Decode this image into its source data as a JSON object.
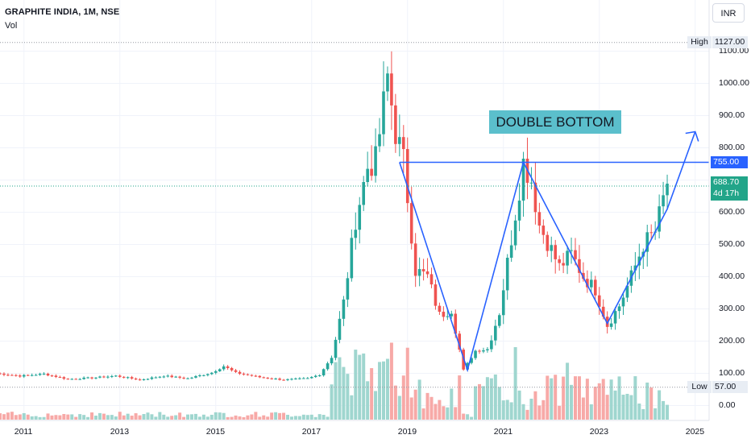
{
  "header": {
    "title": "GRAPHITE INDIA, 1M, NSE",
    "volume_label": "Vol",
    "currency": "INR"
  },
  "annotation": {
    "text": "DOUBLE BOTTOM"
  },
  "price_tags": {
    "high_label": "High",
    "high_value": "1127.00",
    "low_label": "Low",
    "low_value": "57.00",
    "resistance_value": "755.00",
    "last_value": "688.70",
    "countdown": "4d 17h"
  },
  "colors": {
    "up": "#26a69a",
    "down": "#ef5350",
    "vol_up": "#9fd6cf",
    "vol_down": "#f7a9a7",
    "pattern": "#2962ff",
    "annotation_bg": "#5bbfcc"
  },
  "chart_data": {
    "type": "candlestick",
    "title": "GRAPHITE INDIA, 1M, NSE",
    "interval": "1M",
    "y_ticks": [
      "0.00",
      "100.00",
      "200.00",
      "300.00",
      "400.00",
      "500.00",
      "600.00",
      "700.00",
      "800.00",
      "900.00",
      "1000.00",
      "1100.00"
    ],
    "x_ticks": [
      "2011",
      "2013",
      "2015",
      "2017",
      "2019",
      "2021",
      "2023",
      "2025"
    ],
    "ylim": [
      -30,
      1150
    ],
    "all_time_high": 1127.0,
    "all_time_low": 57.0,
    "last_price": 688.7,
    "resistance_level": 755.0,
    "anchors": [
      [
        "2010-06",
        100
      ],
      [
        "2010-12",
        92
      ],
      [
        "2011-06",
        98
      ],
      [
        "2011-12",
        82
      ],
      [
        "2012-06",
        86
      ],
      [
        "2012-12",
        92
      ],
      [
        "2013-06",
        80
      ],
      [
        "2013-12",
        92
      ],
      [
        "2014-06",
        84
      ],
      [
        "2014-12",
        102
      ],
      [
        "2015-03",
        122
      ],
      [
        "2015-06",
        102
      ],
      [
        "2015-12",
        88
      ],
      [
        "2016-06",
        80
      ],
      [
        "2016-12",
        84
      ],
      [
        "2017-03",
        96
      ],
      [
        "2017-06",
        150
      ],
      [
        "2017-09",
        320
      ],
      [
        "2017-12",
        580
      ],
      [
        "2018-03",
        740
      ],
      [
        "2018-05",
        760
      ],
      [
        "2018-08",
        1020
      ],
      [
        "2018-10",
        850
      ],
      [
        "2018-12",
        760
      ],
      [
        "2019-03",
        420
      ],
      [
        "2019-06",
        400
      ],
      [
        "2019-09",
        280
      ],
      [
        "2019-12",
        300
      ],
      [
        "2020-03",
        110
      ],
      [
        "2020-06",
        170
      ],
      [
        "2020-09",
        175
      ],
      [
        "2020-12",
        290
      ],
      [
        "2021-03",
        520
      ],
      [
        "2021-06",
        755
      ],
      [
        "2021-08",
        700
      ],
      [
        "2021-10",
        560
      ],
      [
        "2021-12",
        510
      ],
      [
        "2022-03",
        430
      ],
      [
        "2022-06",
        470
      ],
      [
        "2022-09",
        400
      ],
      [
        "2022-12",
        360
      ],
      [
        "2023-03",
        250
      ],
      [
        "2023-06",
        310
      ],
      [
        "2023-09",
        400
      ],
      [
        "2023-12",
        500
      ],
      [
        "2024-03",
        540
      ],
      [
        "2024-06",
        688.7
      ]
    ],
    "pattern_points": [
      [
        "2018-11",
        755
      ],
      [
        "2020-04",
        110
      ],
      [
        "2021-06",
        755
      ],
      [
        "2023-03",
        255
      ],
      [
        "2024-06",
        610
      ],
      [
        "2025-01",
        850
      ]
    ]
  }
}
